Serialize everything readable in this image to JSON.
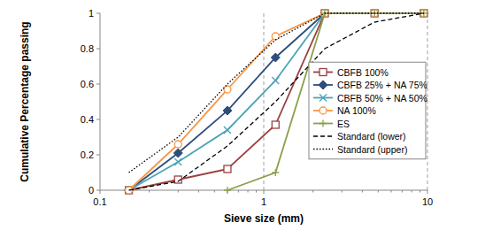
{
  "chart_data": {
    "type": "line",
    "x_label": "Sieve size (mm)",
    "y_label": "Cumulative Percentage passing",
    "x": [
      0.15,
      0.3,
      0.6,
      1.18,
      2.36,
      4.75,
      9.5
    ],
    "series": [
      {
        "name": "CBFB 100%",
        "color": "#9b4040",
        "marker": "square",
        "line_style": "solid",
        "values": [
          0,
          0.06,
          0.12,
          0.37,
          1,
          1,
          1
        ]
      },
      {
        "name": "CBFB 25% + NA 75%",
        "color": "#2e4d7b",
        "marker": "diamond",
        "line_style": "solid",
        "values": [
          0,
          0.21,
          0.45,
          0.75,
          1,
          1,
          1
        ]
      },
      {
        "name": "CBFB 50% + NA 50%",
        "color": "#4ba3b8",
        "marker": "x",
        "line_style": "solid",
        "values": [
          0,
          0.16,
          0.34,
          0.62,
          1,
          1,
          1
        ]
      },
      {
        "name": "NA 100%",
        "color": "#f79646",
        "marker": "circle",
        "line_style": "solid",
        "values": [
          0,
          0.26,
          0.57,
          0.87,
          1,
          1,
          1
        ]
      },
      {
        "name": "ES",
        "color": "#8aa04a",
        "marker": "plus",
        "line_style": "solid",
        "values": [
          null,
          null,
          0,
          0.1,
          1,
          1,
          1
        ]
      },
      {
        "name": "Standard (lower)",
        "color": "#000000",
        "marker": "none",
        "line_style": "dashed",
        "values": [
          0,
          0.05,
          0.25,
          0.5,
          0.8,
          0.95,
          1
        ]
      },
      {
        "name": "Standard (upper)",
        "color": "#000000",
        "marker": "none",
        "line_style": "dotted",
        "values": [
          0.1,
          0.3,
          0.6,
          0.85,
          1,
          1,
          1
        ]
      }
    ],
    "xlim": [
      0.1,
      10
    ],
    "xticks": [
      0.1,
      1,
      10
    ],
    "ylim": [
      0,
      1
    ],
    "yticks": [
      0,
      0.2,
      0.4,
      0.6,
      0.8,
      1
    ],
    "log": "x",
    "grid": true,
    "legend": "right"
  }
}
